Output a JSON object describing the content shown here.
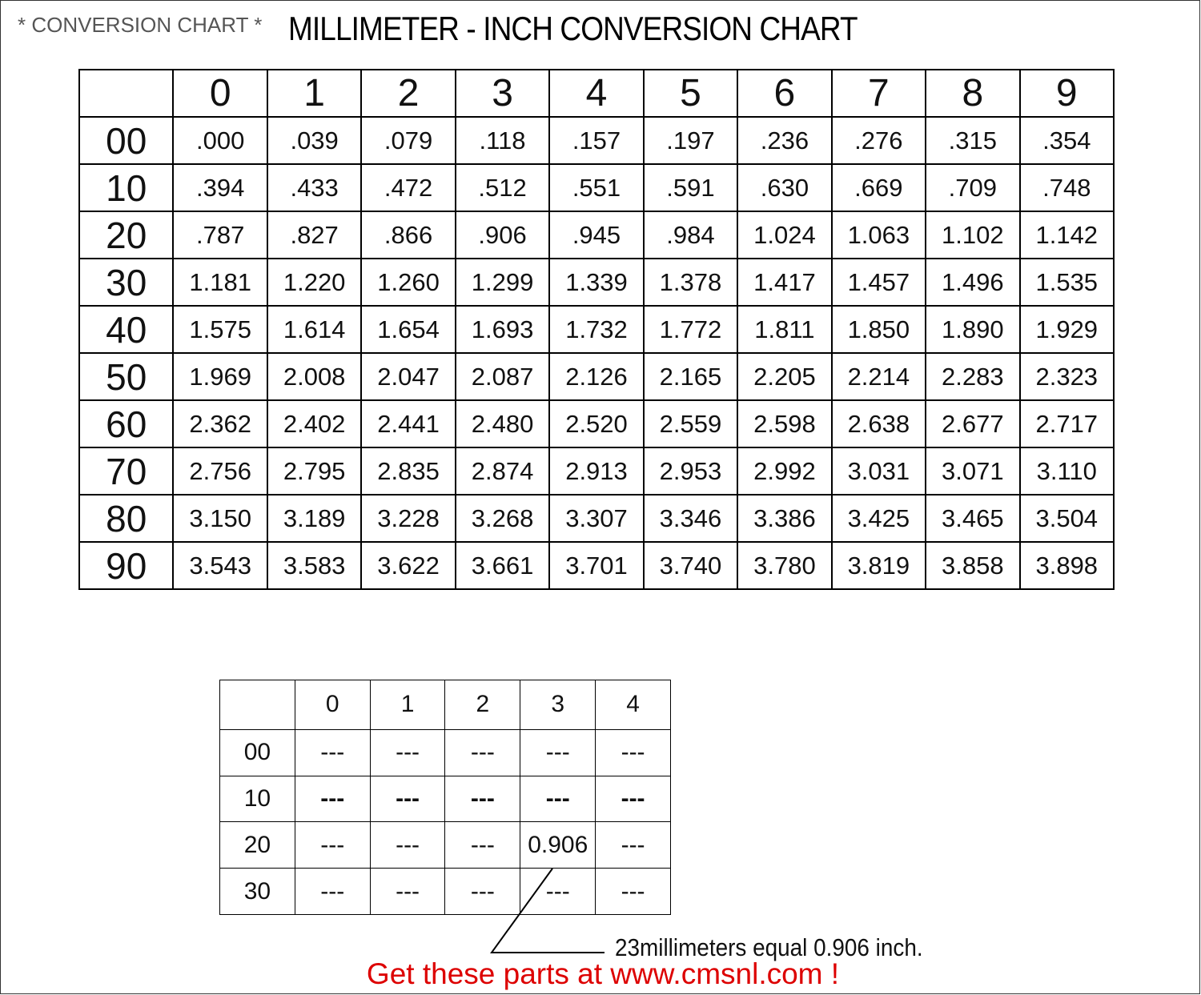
{
  "header": {
    "label": "* CONVERSION CHART *",
    "title": "MILLIMETER - INCH CONVERSION CHART"
  },
  "main_table": {
    "columns": [
      "0",
      "1",
      "2",
      "3",
      "4",
      "5",
      "6",
      "7",
      "8",
      "9"
    ],
    "rows": [
      {
        "label": "00",
        "cells": [
          ".000",
          ".039",
          ".079",
          ".118",
          ".157",
          ".197",
          ".236",
          ".276",
          ".315",
          ".354"
        ]
      },
      {
        "label": "10",
        "cells": [
          ".394",
          ".433",
          ".472",
          ".512",
          ".551",
          ".591",
          ".630",
          ".669",
          ".709",
          ".748"
        ]
      },
      {
        "label": "20",
        "cells": [
          ".787",
          ".827",
          ".866",
          ".906",
          ".945",
          ".984",
          "1.024",
          "1.063",
          "1.102",
          "1.142"
        ]
      },
      {
        "label": "30",
        "cells": [
          "1.181",
          "1.220",
          "1.260",
          "1.299",
          "1.339",
          "1.378",
          "1.417",
          "1.457",
          "1.496",
          "1.535"
        ]
      },
      {
        "label": "40",
        "cells": [
          "1.575",
          "1.614",
          "1.654",
          "1.693",
          "1.732",
          "1.772",
          "1.811",
          "1.850",
          "1.890",
          "1.929"
        ]
      },
      {
        "label": "50",
        "cells": [
          "1.969",
          "2.008",
          "2.047",
          "2.087",
          "2.126",
          "2.165",
          "2.205",
          "2.214",
          "2.283",
          "2.323"
        ]
      },
      {
        "label": "60",
        "cells": [
          "2.362",
          "2.402",
          "2.441",
          "2.480",
          "2.520",
          "2.559",
          "2.598",
          "2.638",
          "2.677",
          "2.717"
        ]
      },
      {
        "label": "70",
        "cells": [
          "2.756",
          "2.795",
          "2.835",
          "2.874",
          "2.913",
          "2.953",
          "2.992",
          "3.031",
          "3.071",
          "3.110"
        ]
      },
      {
        "label": "80",
        "cells": [
          "3.150",
          "3.189",
          "3.228",
          "3.268",
          "3.307",
          "3.346",
          "3.386",
          "3.425",
          "3.465",
          "3.504"
        ]
      },
      {
        "label": "90",
        "cells": [
          "3.543",
          "3.583",
          "3.622",
          "3.661",
          "3.701",
          "3.740",
          "3.780",
          "3.819",
          "3.858",
          "3.898"
        ]
      }
    ]
  },
  "example_table": {
    "columns": [
      "0",
      "1",
      "2",
      "3",
      "4"
    ],
    "rows": [
      {
        "label": "00",
        "cells": [
          "---",
          "---",
          "---",
          "---",
          "---"
        ]
      },
      {
        "label": "10",
        "cells": [
          "---",
          "---",
          "---",
          "---",
          "---"
        ]
      },
      {
        "label": "20",
        "cells": [
          "---",
          "---",
          "---",
          "0.906",
          "---"
        ]
      },
      {
        "label": "30",
        "cells": [
          "---",
          "---",
          "---",
          "---",
          "---"
        ]
      }
    ]
  },
  "annotation": "23millimeters equal 0.906 inch.",
  "footer": "Get these parts at www.cmsnl.com !"
}
